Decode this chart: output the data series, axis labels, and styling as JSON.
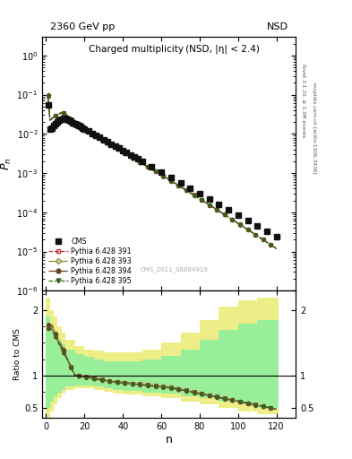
{
  "title_top_left": "2360 GeV pp",
  "title_top_right": "NSD",
  "title_main": "Charged multiplicity (NSD, |η| < 2.4)",
  "ylabel_main": "$P_n$",
  "ylabel_ratio": "Ratio to CMS",
  "xlabel": "n",
  "watermark": "CMS_2011_S8884919",
  "right_label_top": "Rivet 3.1.10, ≥ 3.3M events",
  "right_label_bot": "mcplots.cern.ch [arXiv:1306.3436]",
  "ylim_main": [
    1e-06,
    3.0
  ],
  "ylim_ratio": [
    0.35,
    2.3
  ],
  "xlim": [
    -2,
    130
  ],
  "cms_color": "#111111",
  "p391_color": "#bb3333",
  "p393_color": "#888833",
  "p394_color": "#664422",
  "p395_color": "#336622",
  "band_yellow": "#eeee88",
  "band_green": "#99ee99"
}
